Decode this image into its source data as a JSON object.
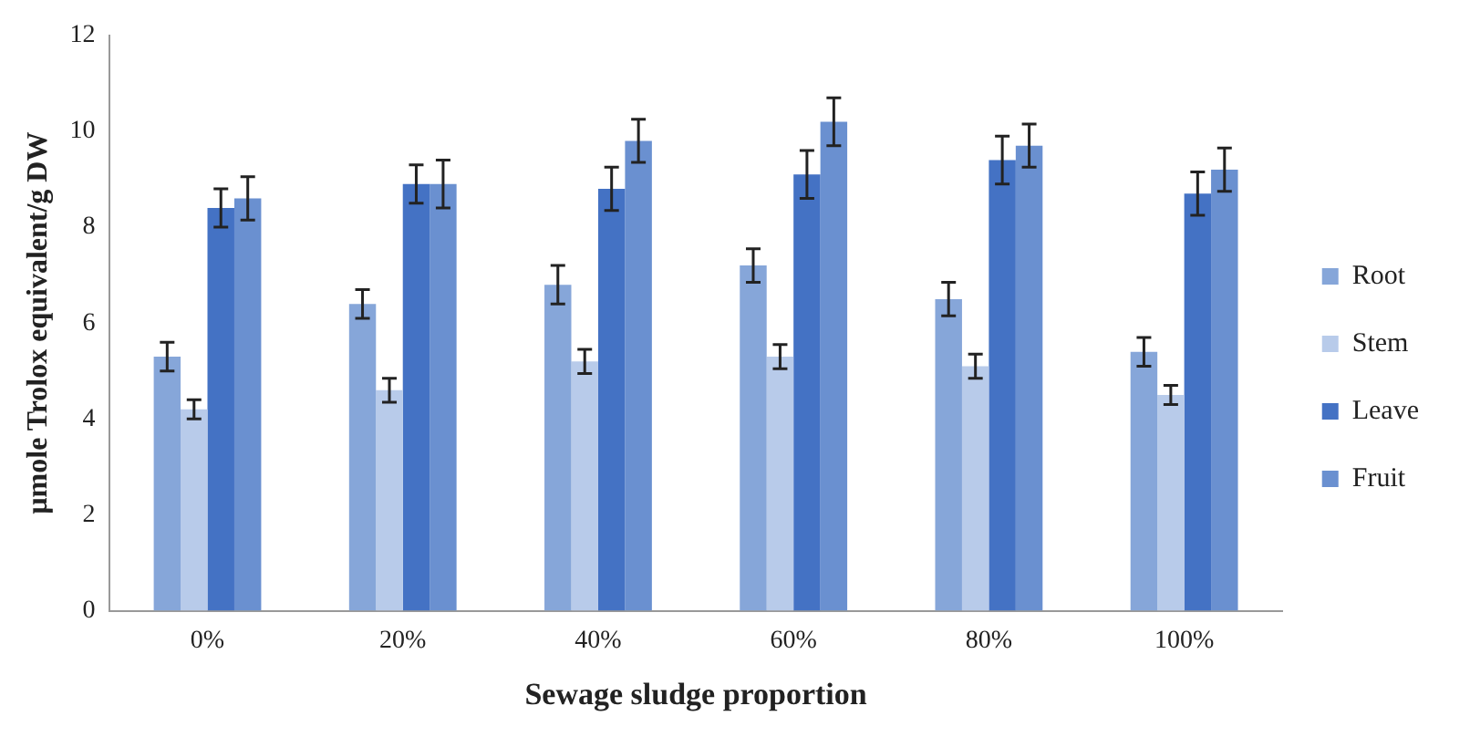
{
  "chart_data": {
    "type": "bar",
    "xlabel": "Sewage sludge proportion",
    "ylabel": "µmole Trolox equivalent/g DW",
    "categories": [
      "0%",
      "20%",
      "40%",
      "60%",
      "80%",
      "100%"
    ],
    "series": [
      {
        "name": "Root",
        "color": "#86a6d9",
        "values": [
          5.3,
          6.4,
          6.8,
          7.2,
          6.5,
          5.4
        ],
        "errors": [
          0.3,
          0.3,
          0.4,
          0.35,
          0.35,
          0.3
        ]
      },
      {
        "name": "Stem",
        "color": "#b8cbea",
        "values": [
          4.2,
          4.6,
          5.2,
          5.3,
          5.1,
          4.5
        ],
        "errors": [
          0.2,
          0.25,
          0.25,
          0.25,
          0.25,
          0.2
        ]
      },
      {
        "name": "Leave",
        "color": "#4472c4",
        "values": [
          8.4,
          8.9,
          8.8,
          9.1,
          9.4,
          8.7
        ],
        "errors": [
          0.4,
          0.4,
          0.45,
          0.5,
          0.5,
          0.45
        ]
      },
      {
        "name": "Fruit",
        "color": "#6a90d0",
        "values": [
          8.6,
          8.9,
          9.8,
          10.2,
          9.7,
          9.2
        ],
        "errors": [
          0.45,
          0.5,
          0.45,
          0.5,
          0.45,
          0.45
        ]
      }
    ],
    "ylim": [
      0,
      12
    ],
    "yticks": [
      0,
      2,
      4,
      6,
      8,
      10,
      12
    ],
    "grid": false,
    "legend": "right"
  }
}
